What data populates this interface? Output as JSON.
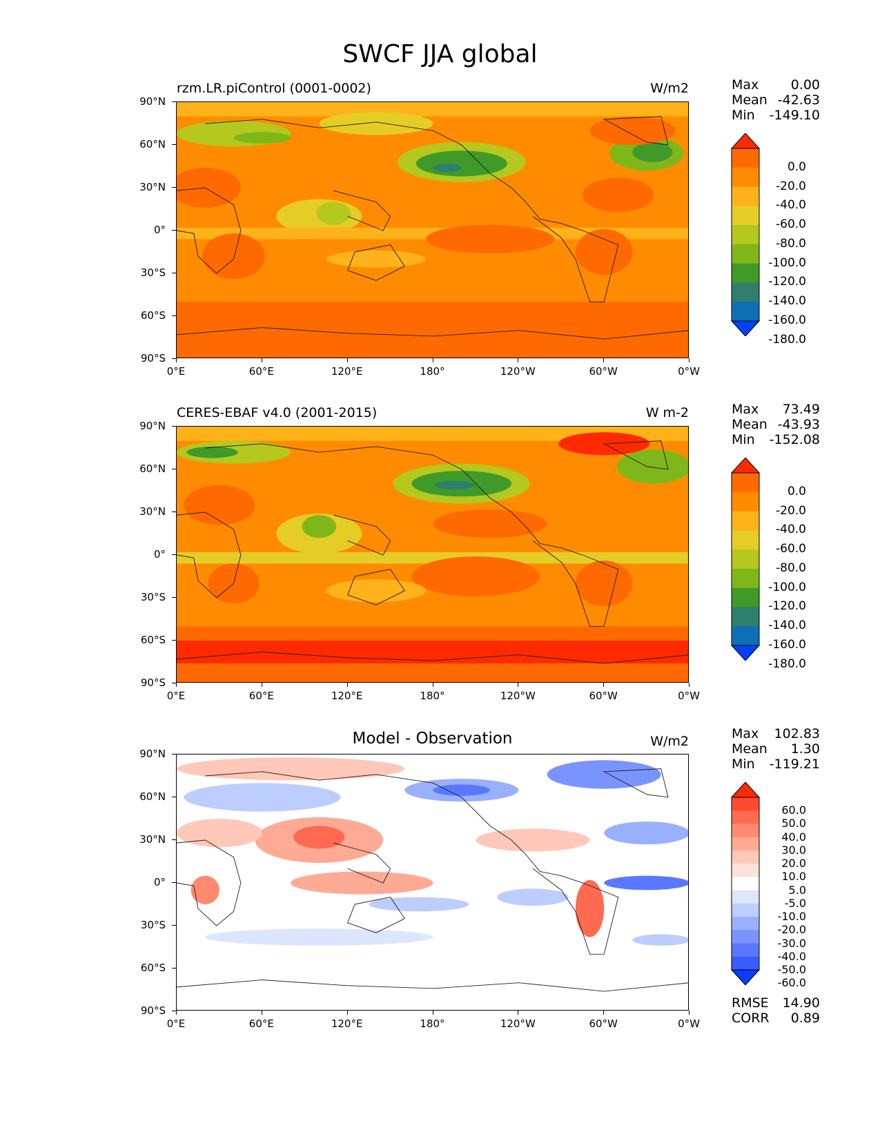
{
  "title": "SWCF JJA global",
  "lat_ticks": [
    "90°N",
    "60°N",
    "30°N",
    "0°",
    "30°S",
    "60°S",
    "90°S"
  ],
  "lon_ticks": [
    "0°E",
    "60°E",
    "120°E",
    "180°",
    "120°W",
    "60°W",
    "0°W"
  ],
  "panels": [
    {
      "name": "model",
      "left_label": "rzm.LR.piControl (0001-0002)",
      "center_label": "",
      "units": "W/m2",
      "stats": {
        "max_label": "Max",
        "max": "0.00",
        "mean_label": "Mean",
        "mean": "-42.63",
        "min_label": "Min",
        "min": "-149.10"
      },
      "colorbar": {
        "levels": [
          "0.0",
          "-20.0",
          "-40.0",
          "-60.0",
          "-80.0",
          "-100.0",
          "-120.0",
          "-140.0",
          "-160.0",
          "-180.0"
        ],
        "colors": [
          "#ff2a00",
          "#ff6a00",
          "#ff8c00",
          "#ffb21a",
          "#e6cc26",
          "#b4c81e",
          "#7fb71a",
          "#3f9a2a",
          "#2e7f6e",
          "#0e6fb5",
          "#0040ff"
        ]
      }
    },
    {
      "name": "observation",
      "left_label": "CERES-EBAF v4.0 (2001-2015)",
      "center_label": "",
      "units": "W m-2",
      "stats": {
        "max_label": "Max",
        "max": "73.49",
        "mean_label": "Mean",
        "mean": "-43.93",
        "min_label": "Min",
        "min": "-152.08"
      },
      "colorbar": {
        "levels": [
          "0.0",
          "-20.0",
          "-40.0",
          "-60.0",
          "-80.0",
          "-100.0",
          "-120.0",
          "-140.0",
          "-160.0",
          "-180.0"
        ],
        "colors": [
          "#ff2a00",
          "#ff6a00",
          "#ff8c00",
          "#ffb21a",
          "#e6cc26",
          "#b4c81e",
          "#7fb71a",
          "#3f9a2a",
          "#2e7f6e",
          "#0e6fb5",
          "#0040ff"
        ]
      }
    },
    {
      "name": "difference",
      "left_label": "",
      "center_label": "Model - Observation",
      "units": "W/m2",
      "stats": {
        "max_label": "Max",
        "max": "102.83",
        "mean_label": "Mean",
        "mean": "1.30",
        "min_label": "Min",
        "min": "-119.21"
      },
      "extra_stats": {
        "rmse_label": "RMSE",
        "rmse": "14.90",
        "corr_label": "CORR",
        "corr": "0.89"
      },
      "colorbar": {
        "levels": [
          "60.0",
          "50.0",
          "40.0",
          "30.0",
          "20.0",
          "10.0",
          "5.0",
          "-5.0",
          "-10.0",
          "-20.0",
          "-30.0",
          "-40.0",
          "-50.0",
          "-60.0"
        ],
        "colors": [
          "#ff2a00",
          "#ff4a30",
          "#ff6a50",
          "#ff8a70",
          "#ffaa95",
          "#ffc8b8",
          "#ffe2da",
          "#ffffff",
          "#dde6ff",
          "#bccdff",
          "#99b0ff",
          "#7a94ff",
          "#5a78ff",
          "#3a5cff",
          "#0b3cff"
        ]
      }
    }
  ]
}
